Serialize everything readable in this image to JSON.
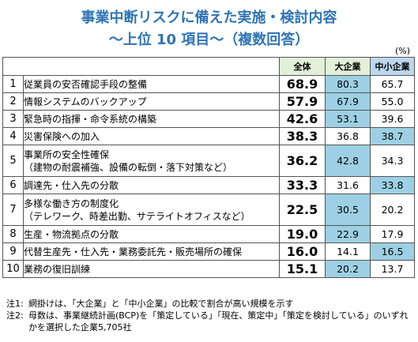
{
  "title_line1": "事業中断リスクに備えた実施・検討内容",
  "title_line2": "～上位 10 項目～（複数回答）",
  "unit": "(%)",
  "chart_data": {
    "type": "table",
    "columns": [
      "全体",
      "大企業",
      "中小企業"
    ],
    "rows": [
      {
        "rank": "1",
        "label": [
          "従業員の安否確認手段の整備"
        ],
        "values": [
          "68.9",
          "80.3",
          "65.7"
        ],
        "highlight": "big"
      },
      {
        "rank": "2",
        "label": [
          "情報システムのバックアップ"
        ],
        "values": [
          "57.9",
          "67.9",
          "55.0"
        ],
        "highlight": "big"
      },
      {
        "rank": "3",
        "label": [
          "緊急時の指揮・命令系統の構築"
        ],
        "values": [
          "42.6",
          "53.1",
          "39.6"
        ],
        "highlight": "big"
      },
      {
        "rank": "4",
        "label": [
          "災害保険への加入"
        ],
        "values": [
          "38.3",
          "36.8",
          "38.7"
        ],
        "highlight": "small"
      },
      {
        "rank": "5",
        "label": [
          "事業所の安全性確保",
          "（建物の耐震補強、設備の転倒・落下対策など）"
        ],
        "values": [
          "36.2",
          "42.8",
          "34.3"
        ],
        "highlight": "big"
      },
      {
        "rank": "6",
        "label": [
          "調達先・仕入先の分散"
        ],
        "values": [
          "33.3",
          "31.6",
          "33.8"
        ],
        "highlight": "small"
      },
      {
        "rank": "7",
        "label": [
          "多様な働き方の制度化",
          "（テレワーク、時差出勤、サテライトオフィスなど）"
        ],
        "values": [
          "22.5",
          "30.5",
          "20.2"
        ],
        "highlight": "big"
      },
      {
        "rank": "8",
        "label": [
          "生産・物流拠点の分散"
        ],
        "values": [
          "19.0",
          "22.9",
          "17.9"
        ],
        "highlight": "big"
      },
      {
        "rank": "9",
        "label": [
          "代替生産先・仕入先・業務委託先・販売場所の確保"
        ],
        "values": [
          "16.0",
          "14.1",
          "16.5"
        ],
        "highlight": "small"
      },
      {
        "rank": "10",
        "label": [
          "業務の復旧訓練"
        ],
        "values": [
          "15.1",
          "20.2",
          "13.7"
        ],
        "highlight": "big"
      }
    ]
  },
  "notes": [
    {
      "label": "注1:",
      "text": "網掛けは、「大企業」と「中小企業」の比較で割合が高い規模を示す"
    },
    {
      "label": "注2:",
      "text": "母数は、事業継続計画(BCP)を「策定している」「現在、策定中」「策定を検討している」のいずれかを選択した企業5,705社"
    }
  ]
}
